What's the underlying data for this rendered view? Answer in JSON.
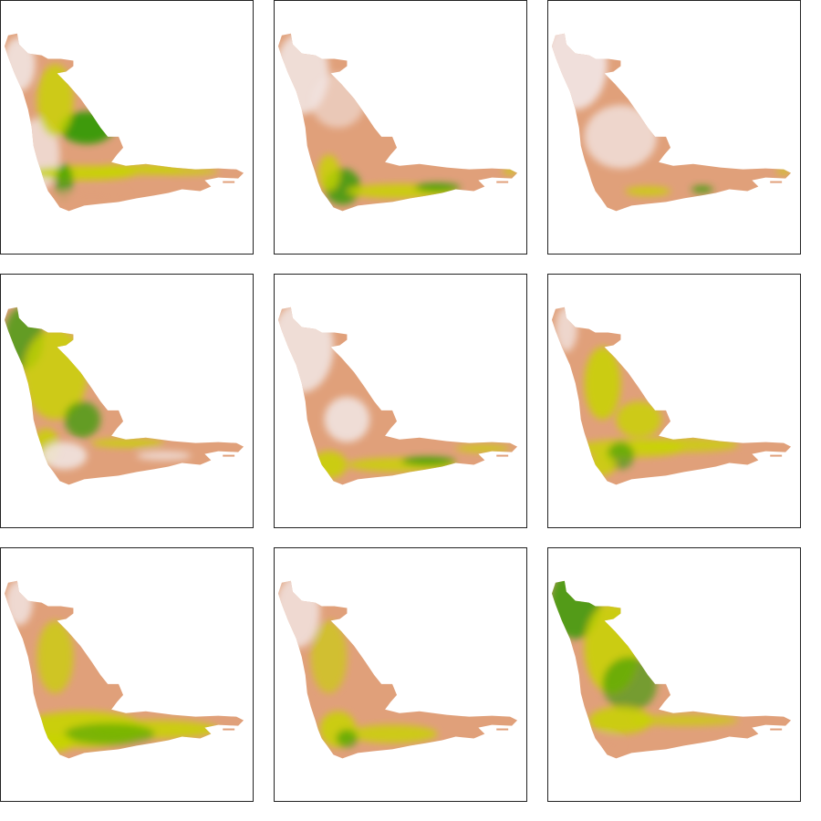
{
  "figure": {
    "panels": [
      {
        "index": 0,
        "pattern": "northwest-and-central-highlands-green",
        "colors": {
          "low": "#f1e3e0",
          "mid": "#e0a07a",
          "high": "#c8d400",
          "peak": "#2e9a00"
        }
      },
      {
        "index": 1,
        "pattern": "south-coast-green",
        "colors": {
          "low": "#f1e3e0",
          "mid": "#e0a07a",
          "high": "#c8d400",
          "peak": "#2e9a00"
        }
      },
      {
        "index": 2,
        "pattern": "mostly-low-small-south-green",
        "colors": {
          "low": "#f1e3e0",
          "mid": "#e0a07a",
          "high": "#c8d400",
          "peak": "#2e9a00"
        }
      },
      {
        "index": 3,
        "pattern": "north-green",
        "colors": {
          "low": "#f1e3e0",
          "mid": "#e0a07a",
          "high": "#c8d400",
          "peak": "#2e9a00"
        }
      },
      {
        "index": 4,
        "pattern": "south-green",
        "colors": {
          "low": "#f1e3e0",
          "mid": "#e0a07a",
          "high": "#c8d400",
          "peak": "#2e9a00"
        }
      },
      {
        "index": 5,
        "pattern": "mixed-central-green",
        "colors": {
          "low": "#f1e3e0",
          "mid": "#e0a07a",
          "high": "#c8d400",
          "peak": "#2e9a00"
        }
      },
      {
        "index": 6,
        "pattern": "south-broad-green",
        "colors": {
          "low": "#f1e3e0",
          "mid": "#e0a07a",
          "high": "#c8d400",
          "peak": "#2e9a00"
        }
      },
      {
        "index": 7,
        "pattern": "mixed-south-green",
        "colors": {
          "low": "#f1e3e0",
          "mid": "#e0a07a",
          "high": "#c8d400",
          "peak": "#2e9a00"
        }
      },
      {
        "index": 8,
        "pattern": "north-strong-green",
        "colors": {
          "low": "#f1e3e0",
          "mid": "#e0a07a",
          "high": "#c8d400",
          "peak": "#2e9a00"
        }
      }
    ]
  }
}
